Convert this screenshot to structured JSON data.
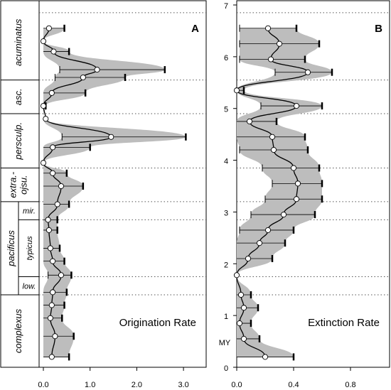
{
  "chart_data": [
    {
      "type": "line",
      "panel_label": "A",
      "title": "Origination Rate",
      "xlim": [
        0.0,
        3.5
      ],
      "ylim": [
        0,
        7
      ],
      "xticks": [
        "0.0",
        "1.0",
        "2.0",
        "3.0"
      ],
      "xtick_values": [
        0,
        1,
        2,
        3
      ],
      "series": [
        {
          "points": [
            {
              "y": 0.2,
              "x": 0.18,
              "err": [
                0.0,
                0.55
              ]
            },
            {
              "y": 0.6,
              "x": 0.25,
              "err": [
                0.0,
                0.65
              ]
            },
            {
              "y": 0.95,
              "x": 0.15,
              "err": [
                0.0,
                0.4
              ]
            },
            {
              "y": 1.2,
              "x": 0.18,
              "err": [
                0.0,
                0.45
              ]
            },
            {
              "y": 1.45,
              "x": 0.2,
              "err": [
                0.0,
                0.5
              ]
            },
            {
              "y": 1.78,
              "x": 0.38,
              "err": [
                0.1,
                0.6
              ]
            },
            {
              "y": 2.05,
              "x": 0.2,
              "err": [
                0.0,
                0.45
              ]
            },
            {
              "y": 2.3,
              "x": 0.15,
              "err": [
                0.0,
                0.35
              ]
            },
            {
              "y": 2.65,
              "x": 0.12,
              "err": [
                0.0,
                0.3
              ]
            },
            {
              "y": 2.85,
              "x": 0.1,
              "err": [
                0.0,
                0.3
              ]
            },
            {
              "y": 3.15,
              "x": 0.3,
              "err": [
                0.0,
                0.55
              ]
            },
            {
              "y": 3.5,
              "x": 0.38,
              "err": [
                0.0,
                0.85
              ]
            },
            {
              "y": 3.75,
              "x": 0.2,
              "err": [
                0.0,
                0.5
              ]
            },
            {
              "y": 3.95,
              "x": 0.0,
              "err": [
                0.0,
                0.0
              ]
            },
            {
              "y": 4.25,
              "x": 0.2,
              "err": [
                0.0,
                1.0
              ]
            },
            {
              "y": 4.45,
              "x": 1.45,
              "err": [
                0.4,
                3.05
              ]
            },
            {
              "y": 4.8,
              "x": 0.05,
              "err": [
                0.0,
                0.0
              ]
            },
            {
              "y": 5.05,
              "x": 0.0,
              "err": [
                0.0,
                0.05
              ]
            },
            {
              "y": 5.3,
              "x": 0.18,
              "err": [
                0.0,
                0.9
              ]
            },
            {
              "y": 5.6,
              "x": 0.85,
              "err": [
                0.25,
                1.75
              ]
            },
            {
              "y": 5.75,
              "x": 1.15,
              "err": [
                0.35,
                2.6
              ]
            },
            {
              "y": 6.1,
              "x": 0.22,
              "err": [
                0.0,
                0.55
              ]
            },
            {
              "y": 6.3,
              "x": 0.0,
              "err": [
                0.0,
                0.0
              ]
            },
            {
              "y": 6.55,
              "x": 0.12,
              "err": [
                0.0,
                0.45
              ]
            }
          ]
        }
      ],
      "zones": [
        {
          "label": "acuminatus",
          "y_from": 5.55,
          "y_to": 7.0
        },
        {
          "label": "asc.",
          "y_from": 4.9,
          "y_to": 5.55
        },
        {
          "label": "persculp.",
          "y_from": 3.85,
          "y_to": 4.9
        },
        {
          "label": "extra.-\nojsu.",
          "y_from": 3.2,
          "y_to": 3.85
        },
        {
          "label": "pacificus",
          "y_from": 1.4,
          "y_to": 3.2,
          "subzones": [
            {
              "label": "mir.",
              "y_from": 2.85,
              "y_to": 3.2
            },
            {
              "label": "typicus",
              "y_from": 1.75,
              "y_to": 2.85
            },
            {
              "label": "low.",
              "y_from": 1.4,
              "y_to": 1.75
            }
          ]
        },
        {
          "label": "complexus",
          "y_from": 0.0,
          "y_to": 1.4
        }
      ],
      "dotted_levels": [
        1.4,
        1.75,
        2.85,
        3.2,
        3.85,
        4.9,
        5.55,
        6.85
      ]
    },
    {
      "type": "line",
      "panel_label": "B",
      "title": "Extinction Rate",
      "xlim": [
        0.0,
        1.0
      ],
      "ylim": [
        0,
        7
      ],
      "yticks": [
        "0",
        "1",
        "2",
        "3",
        "4",
        "5",
        "6",
        "7"
      ],
      "ylabel": "MY",
      "xticks": [
        "0.0",
        "0.4",
        "0.8"
      ],
      "xtick_values": [
        0.0,
        0.4,
        0.8
      ],
      "series": [
        {
          "points": [
            {
              "y": 0.2,
              "x": 0.2,
              "err": [
                0.0,
                0.4
              ]
            },
            {
              "y": 0.55,
              "x": 0.05,
              "err": [
                0.0,
                0.16
              ]
            },
            {
              "y": 0.85,
              "x": 0.02,
              "err": [
                0.0,
                0.1
              ]
            },
            {
              "y": 1.15,
              "x": 0.05,
              "err": [
                0.0,
                0.15
              ]
            },
            {
              "y": 1.4,
              "x": 0.03,
              "err": [
                0.0,
                0.1
              ]
            },
            {
              "y": 1.78,
              "x": 0.0,
              "err": [
                0.0,
                0.0
              ]
            },
            {
              "y": 2.1,
              "x": 0.08,
              "err": [
                0.0,
                0.25
              ]
            },
            {
              "y": 2.4,
              "x": 0.16,
              "err": [
                0.0,
                0.34
              ]
            },
            {
              "y": 2.65,
              "x": 0.22,
              "err": [
                0.02,
                0.4
              ]
            },
            {
              "y": 2.95,
              "x": 0.33,
              "err": [
                0.1,
                0.55
              ]
            },
            {
              "y": 3.25,
              "x": 0.42,
              "err": [
                0.2,
                0.6
              ]
            },
            {
              "y": 3.55,
              "x": 0.43,
              "err": [
                0.25,
                0.6
              ]
            },
            {
              "y": 3.85,
              "x": 0.4,
              "err": [
                0.18,
                0.58
              ]
            },
            {
              "y": 4.2,
              "x": 0.26,
              "err": [
                0.02,
                0.5
              ]
            },
            {
              "y": 4.45,
              "x": 0.25,
              "err": [
                0.0,
                0.48
              ]
            },
            {
              "y": 4.75,
              "x": 0.09,
              "err": [
                0.0,
                0.28
              ]
            },
            {
              "y": 5.05,
              "x": 0.42,
              "err": [
                0.17,
                0.6
              ]
            },
            {
              "y": 5.35,
              "x": 0.0,
              "err": [
                0.0,
                0.05
              ]
            },
            {
              "y": 5.7,
              "x": 0.5,
              "err": [
                0.27,
                0.67
              ]
            },
            {
              "y": 5.95,
              "x": 0.24,
              "err": [
                0.02,
                0.48
              ]
            },
            {
              "y": 6.25,
              "x": 0.3,
              "err": [
                0.02,
                0.58
              ]
            },
            {
              "y": 6.55,
              "x": 0.22,
              "err": [
                0.02,
                0.42
              ]
            }
          ]
        }
      ],
      "dotted_levels": [
        1.4,
        1.75,
        2.85,
        3.2,
        3.85,
        4.9,
        5.55,
        6.85
      ]
    }
  ],
  "colors": {
    "band": "#bdbdbd",
    "line": "#000000",
    "marker_fill": "#ffffff",
    "dotted": "#555555"
  }
}
